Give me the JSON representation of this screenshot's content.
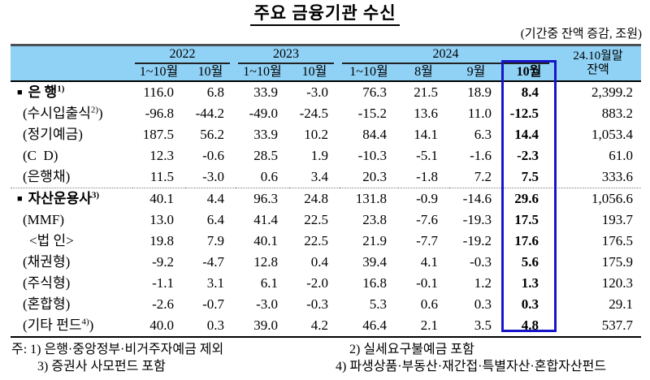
{
  "title": "주요 금융기관 수신",
  "subtitle": "(기간중 잔액 증감, 조원)",
  "colors": {
    "header_bg": "#90D2F6",
    "highlight_border": "#1616C8",
    "top_border": "#4A5056"
  },
  "table": {
    "year_groups": [
      {
        "label": "2022",
        "span": 2
      },
      {
        "label": "2023",
        "span": 2
      },
      {
        "label": "2024",
        "span": 4
      }
    ],
    "months": [
      "1~10월",
      "10월",
      "1~10월",
      "10월",
      "1~10월",
      "8월",
      "9월",
      "10월"
    ],
    "balance_header": [
      "24.10월말",
      "잔액"
    ],
    "rows": [
      {
        "bullet": "■",
        "label": "은 행",
        "sup": "1)",
        "suffix": "",
        "bold": true,
        "indent": 0,
        "section_start": false,
        "values": [
          "116.0",
          "6.8",
          "33.9",
          "-3.0",
          "76.3",
          "21.5",
          "18.9",
          "8.4",
          "2,399.2"
        ]
      },
      {
        "bullet": "",
        "label": "(수시입출식",
        "sup": "2)",
        "suffix": ")",
        "bold": false,
        "indent": 1,
        "section_start": false,
        "values": [
          "-96.8",
          "-44.2",
          "-49.0",
          "-24.5",
          "-15.2",
          "13.6",
          "11.0",
          "-12.5",
          "883.2"
        ]
      },
      {
        "bullet": "",
        "label": "(정기예금)",
        "sup": "",
        "suffix": "",
        "bold": false,
        "indent": 1,
        "section_start": false,
        "values": [
          "187.5",
          "56.2",
          "33.9",
          "10.2",
          "84.4",
          "14.1",
          "6.3",
          "14.4",
          "1,053.4"
        ]
      },
      {
        "bullet": "",
        "label": "(C  D)",
        "sup": "",
        "suffix": "",
        "bold": false,
        "indent": 1,
        "section_start": false,
        "values": [
          "12.3",
          "-0.6",
          "28.5",
          "1.9",
          "-10.3",
          "-5.1",
          "-1.6",
          "-2.3",
          "61.0"
        ]
      },
      {
        "bullet": "",
        "label": "(은행채)",
        "sup": "",
        "suffix": "",
        "bold": false,
        "indent": 1,
        "section_start": false,
        "values": [
          "11.5",
          "-3.0",
          "0.6",
          "3.4",
          "20.3",
          "-1.8",
          "7.2",
          "7.5",
          "333.6"
        ]
      },
      {
        "bullet": "■",
        "label": "자산운용사",
        "sup": "3)",
        "suffix": "",
        "bold": true,
        "indent": 0,
        "section_start": true,
        "values": [
          "40.1",
          "4.4",
          "96.3",
          "24.8",
          "131.8",
          "-0.9",
          "-14.6",
          "29.6",
          "1,056.6"
        ]
      },
      {
        "bullet": "",
        "label": "(MMF)",
        "sup": "",
        "suffix": "",
        "bold": false,
        "indent": 1,
        "section_start": false,
        "values": [
          "13.0",
          "6.4",
          "41.4",
          "22.5",
          "23.8",
          "-7.6",
          "-19.3",
          "17.5",
          "193.7"
        ]
      },
      {
        "bullet": "",
        "label": "<법 인>",
        "sup": "",
        "suffix": "",
        "bold": false,
        "indent": 2,
        "section_start": false,
        "values": [
          "19.8",
          "7.9",
          "40.1",
          "22.5",
          "21.9",
          "-7.7",
          "-19.2",
          "17.6",
          "176.5"
        ]
      },
      {
        "bullet": "",
        "label": "(채권형)",
        "sup": "",
        "suffix": "",
        "bold": false,
        "indent": 1,
        "section_start": false,
        "values": [
          "-9.2",
          "-4.7",
          "12.8",
          "0.4",
          "39.4",
          "4.1",
          "-0.3",
          "5.6",
          "175.9"
        ]
      },
      {
        "bullet": "",
        "label": "(주식형)",
        "sup": "",
        "suffix": "",
        "bold": false,
        "indent": 1,
        "section_start": false,
        "values": [
          "-1.1",
          "3.1",
          "6.1",
          "-2.0",
          "16.8",
          "-0.1",
          "1.2",
          "1.3",
          "120.3"
        ]
      },
      {
        "bullet": "",
        "label": "(혼합형)",
        "sup": "",
        "suffix": "",
        "bold": false,
        "indent": 1,
        "section_start": false,
        "values": [
          "-2.6",
          "-0.7",
          "-3.0",
          "-0.3",
          "5.3",
          "0.6",
          "0.3",
          "0.3",
          "29.1"
        ]
      },
      {
        "bullet": "",
        "label": "(기타 펀드",
        "sup": "4)",
        "suffix": ")",
        "bold": false,
        "indent": 1,
        "section_start": false,
        "values": [
          "40.0",
          "0.3",
          "39.0",
          "4.2",
          "46.4",
          "2.1",
          "3.5",
          "4.8",
          "537.7"
        ]
      }
    ]
  },
  "notes": {
    "line1_left": "주: 1) 은행·중앙정부·비거주자예금 제외",
    "line1_right": "2) 실세요구불예금 포함",
    "line2_left": "3) 증권사 사모펀드 포함",
    "line2_right": "4) 파생상품·부동산·재간접·특별자산·혼합자산펀드"
  }
}
